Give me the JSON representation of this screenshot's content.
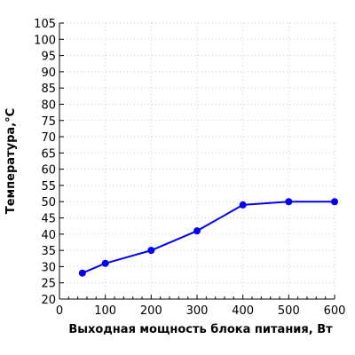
{
  "chart_data": {
    "type": "line",
    "xlabel": "Выходная мощность блока питания, Вт",
    "ylabel": "Температура,°C",
    "xlim": [
      0,
      600
    ],
    "ylim": [
      20,
      105
    ],
    "x_ticks": [
      0,
      100,
      200,
      300,
      400,
      500,
      600
    ],
    "y_ticks": [
      20,
      25,
      30,
      35,
      40,
      45,
      50,
      55,
      60,
      65,
      70,
      75,
      80,
      85,
      90,
      95,
      100,
      105
    ],
    "x_tick_labels": [
      "0",
      "100",
      "200",
      "300",
      "400",
      "500",
      "600"
    ],
    "y_tick_labels": [
      "20",
      "25",
      "30",
      "35",
      "40",
      "45",
      "50",
      "55",
      "60",
      "65",
      "70",
      "75",
      "80",
      "85",
      "90",
      "95",
      "100",
      "105"
    ],
    "grid": true,
    "series": [
      {
        "color": "#0000ee",
        "x": [
          50,
          100,
          200,
          300,
          400,
          500,
          600
        ],
        "y": [
          28,
          31,
          35,
          41,
          49,
          50,
          50
        ]
      }
    ]
  }
}
